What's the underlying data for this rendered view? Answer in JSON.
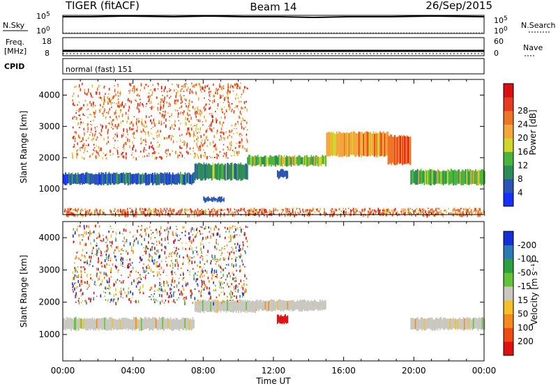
{
  "header": {
    "radar": "TIGER (fitACF)",
    "beam": "Beam 14",
    "date": "26/Sep/2015"
  },
  "panels": {
    "nsky": {
      "label": "N.Sky",
      "ticks": [
        "10^5",
        "10^0"
      ],
      "right_label": "N.Search",
      "right_ticks": [
        "10^5",
        "10^0"
      ]
    },
    "freq": {
      "label_line1": "Freq.",
      "label_line2": "[MHz]",
      "ticks": [
        "18",
        "8"
      ],
      "right_label": "Nave",
      "right_ticks": [
        "60",
        "0"
      ]
    },
    "cpid": {
      "label": "CPID",
      "text": "normal (fast) 151"
    }
  },
  "chart_data": [
    {
      "type": "heatmap",
      "name_printed": "",
      "xlabel": "",
      "ylabel": "Slant Range [km]",
      "xlim_hours": [
        0,
        24
      ],
      "ylim_km": [
        180,
        4500
      ],
      "y_ticks": [
        1000,
        2000,
        3000,
        4000
      ],
      "colorbar": {
        "label": "Power [dB]",
        "ticks": [
          "4",
          "8",
          "12",
          "16",
          "20",
          "24",
          "28"
        ],
        "colors": [
          "#1530ff",
          "#2a55b4",
          "#2d8c57",
          "#4bb43a",
          "#cfd62c",
          "#f4a63a",
          "#f07427",
          "#e83a20",
          "#dc0f10"
        ]
      },
      "regions": [
        {
          "desc": "Strong band",
          "t0": 0.0,
          "t1": 7.5,
          "r0": 1150,
          "r1": 1500,
          "value": 27
        },
        {
          "desc": "Band tail",
          "t0": 7.5,
          "t1": 10.5,
          "r0": 1300,
          "r1": 1800,
          "value": 22
        },
        {
          "desc": "Rising band",
          "t0": 10.5,
          "t1": 15.0,
          "r0": 1750,
          "r1": 2050,
          "value": 18
        },
        {
          "desc": "Upper curve",
          "t0": 15.0,
          "t1": 18.5,
          "r0": 2050,
          "r1": 2800,
          "value": 12
        },
        {
          "desc": "Descending trace",
          "t0": 18.5,
          "t1": 19.8,
          "r0": 1800,
          "r1": 2700,
          "value": 10
        },
        {
          "desc": "Evening band",
          "t0": 19.8,
          "t1": 24.0,
          "r0": 1150,
          "r1": 1600,
          "value": 20
        },
        {
          "desc": "Noon patch",
          "t0": 12.2,
          "t1": 12.8,
          "r0": 1350,
          "r1": 1600,
          "value": 28
        },
        {
          "desc": "Morning patch",
          "t0": 8.0,
          "t1": 9.2,
          "r0": 600,
          "r1": 720,
          "value": 26
        },
        {
          "desc": "Scattered high-range echoes",
          "t0": 0.5,
          "t1": 10.5,
          "r0": 2000,
          "r1": 4400,
          "value": 10
        },
        {
          "desc": "Near-range clutter",
          "t0": 0.0,
          "t1": 24.0,
          "r0": 180,
          "r1": 400,
          "value": 8
        }
      ]
    },
    {
      "type": "heatmap",
      "name_printed": "",
      "xlabel": "Time UT",
      "ylabel": "Slant Range [km]",
      "xlim_hours": [
        0,
        24
      ],
      "x_ticks": [
        "00:00",
        "04:00",
        "08:00",
        "12:00",
        "16:00",
        "20:00",
        "00:00"
      ],
      "ylim_km": [
        180,
        4500
      ],
      "y_ticks": [
        1000,
        2000,
        3000,
        4000
      ],
      "colorbar": {
        "label": "Velocity [m s⁻¹]",
        "ticks": [
          "200",
          "100",
          "50",
          "15",
          "-15",
          "-50",
          "-100",
          "-200"
        ],
        "colors": [
          "#1530d6",
          "#2a7bb4",
          "#2da040",
          "#63c23a",
          "#c8c8c0",
          "#f4c02a",
          "#f48a1c",
          "#ee4a14",
          "#e01010"
        ]
      },
      "regions": [
        {
          "desc": "Ground scatter band",
          "t0": 0.0,
          "t1": 7.5,
          "r0": 1150,
          "r1": 1500,
          "value": 0
        },
        {
          "desc": "Band tail",
          "t0": 7.5,
          "t1": 11.0,
          "r0": 1700,
          "r1": 2050,
          "value": 0
        },
        {
          "desc": "Rising band",
          "t0": 11.0,
          "t1": 15.0,
          "r0": 1750,
          "r1": 2050,
          "value": 0
        },
        {
          "desc": "Evening band",
          "t0": 19.8,
          "t1": 24.0,
          "r0": 1150,
          "r1": 1500,
          "value": 0
        },
        {
          "desc": "Noon patch",
          "t0": 12.2,
          "t1": 12.8,
          "r0": 1350,
          "r1": 1600,
          "value": -200
        },
        {
          "desc": "Scattered echoes",
          "t0": 0.5,
          "t1": 10.5,
          "r0": 2000,
          "r1": 4400,
          "value": 60
        }
      ]
    }
  ]
}
